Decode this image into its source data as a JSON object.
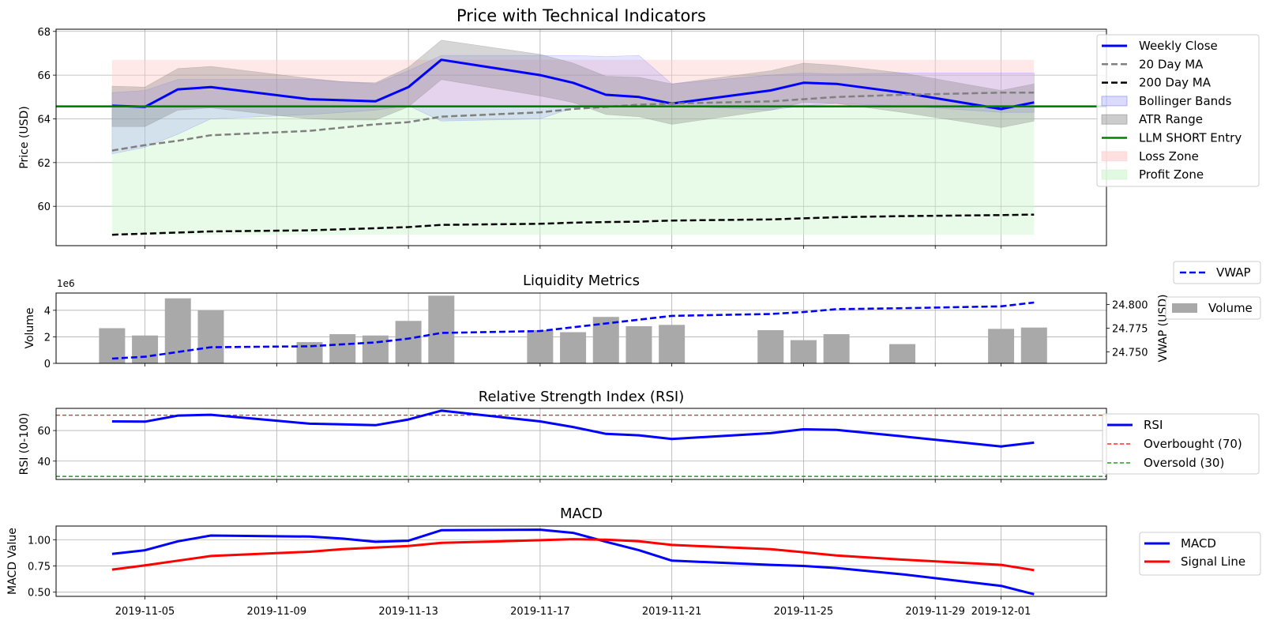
{
  "chart_data": [
    {
      "type": "line",
      "title": "Price with Technical Indicators",
      "ylabel": "Price (USD)",
      "ylim": [
        58.2,
        68.1
      ],
      "yticks": [
        60,
        62,
        64,
        66,
        68
      ],
      "grid": true,
      "legend_position": "right",
      "dates": [
        "2019-11-04",
        "2019-11-05",
        "2019-11-06",
        "2019-11-07",
        "2019-11-10",
        "2019-11-11",
        "2019-11-12",
        "2019-11-13",
        "2019-11-14",
        "2019-11-17",
        "2019-11-18",
        "2019-11-19",
        "2019-11-20",
        "2019-11-21",
        "2019-11-24",
        "2019-11-25",
        "2019-11-26",
        "2019-11-28",
        "2019-12-01",
        "2019-12-02"
      ],
      "series": [
        {
          "name": "Weekly Close",
          "color": "#0000ff",
          "style": "solid",
          "values": [
            64.6,
            64.55,
            65.35,
            65.45,
            64.9,
            64.85,
            64.8,
            65.45,
            66.7,
            66.0,
            65.65,
            65.1,
            65.0,
            64.7,
            65.3,
            65.65,
            65.6,
            65.2,
            64.45,
            64.75
          ]
        },
        {
          "name": "20 Day MA",
          "color": "#808080",
          "style": "dashed",
          "values": [
            62.55,
            62.8,
            63.0,
            63.25,
            63.45,
            63.6,
            63.75,
            63.85,
            64.1,
            64.3,
            64.45,
            64.55,
            64.65,
            64.7,
            64.8,
            64.9,
            65.0,
            65.1,
            65.2,
            65.2
          ]
        },
        {
          "name": "200 Day MA",
          "color": "#000000",
          "style": "dashed",
          "values": [
            58.7,
            58.75,
            58.8,
            58.85,
            58.9,
            58.95,
            59.0,
            59.05,
            59.15,
            59.2,
            59.25,
            59.28,
            59.3,
            59.35,
            59.4,
            59.45,
            59.5,
            59.55,
            59.6,
            59.62
          ]
        }
      ],
      "bands": [
        {
          "name": "Bollinger Bands",
          "color": "#6f6fff",
          "upper": [
            65.2,
            65.3,
            65.8,
            65.8,
            65.8,
            65.7,
            65.6,
            66.2,
            66.9,
            66.9,
            66.9,
            66.85,
            66.9,
            65.6,
            66.0,
            66.1,
            66.05,
            66.1,
            66.1,
            66.1
          ],
          "lower": [
            62.4,
            62.7,
            63.3,
            64.0,
            64.2,
            64.3,
            64.4,
            64.6,
            63.9,
            64.0,
            64.5,
            64.6,
            64.6,
            64.6,
            64.4,
            64.6,
            64.7,
            64.6,
            64.3,
            64.3
          ]
        },
        {
          "name": "ATR Range",
          "color": "#808080",
          "upper": [
            65.5,
            65.45,
            66.3,
            66.4,
            65.85,
            65.7,
            65.65,
            66.35,
            67.6,
            66.95,
            66.55,
            65.95,
            65.9,
            65.6,
            66.2,
            66.55,
            66.45,
            66.1,
            65.3,
            65.6
          ],
          "lower": [
            63.65,
            63.65,
            64.4,
            64.5,
            64.0,
            63.95,
            63.95,
            64.55,
            65.8,
            65.05,
            64.75,
            64.2,
            64.1,
            63.75,
            64.4,
            64.75,
            64.7,
            64.3,
            63.6,
            63.9
          ]
        }
      ],
      "hline": {
        "name": "LLM SHORT Entry",
        "color": "#008000",
        "value": 64.57
      },
      "zones": [
        {
          "name": "Loss Zone",
          "color": "#ffcccc",
          "from": 64.57,
          "to": 66.7
        },
        {
          "name": "Profit Zone",
          "color": "#ccf5cc",
          "from": 58.7,
          "to": 64.57
        }
      ]
    },
    {
      "type": "bar",
      "title": "Liquidity Metrics",
      "ylabel": "Volume",
      "y_offset_text": "1e6",
      "ylim": [
        0,
        5.3
      ],
      "yticks": [
        0,
        2,
        4
      ],
      "y2label": "VWAP (USD)",
      "y2lim": [
        24.738,
        24.812
      ],
      "y2ticks": [
        "24.750",
        "24.775",
        "24.800"
      ],
      "grid": true,
      "dates": [
        "2019-11-04",
        "2019-11-05",
        "2019-11-06",
        "2019-11-07",
        "2019-11-10",
        "2019-11-11",
        "2019-11-12",
        "2019-11-13",
        "2019-11-14",
        "2019-11-17",
        "2019-11-18",
        "2019-11-19",
        "2019-11-20",
        "2019-11-21",
        "2019-11-24",
        "2019-11-25",
        "2019-11-26",
        "2019-11-28",
        "2019-12-01",
        "2019-12-02"
      ],
      "series": [
        {
          "name": "Volume",
          "color": "#a9a9a9",
          "values": [
            2.65,
            2.1,
            4.9,
            4.0,
            1.6,
            2.2,
            2.1,
            3.2,
            5.1,
            2.5,
            2.35,
            3.5,
            2.8,
            2.9,
            2.5,
            1.75,
            2.2,
            1.45,
            2.6,
            2.7
          ]
        },
        {
          "name": "VWAP",
          "color": "#0000ff",
          "style": "dashed",
          "values": [
            24.743,
            24.745,
            24.75,
            24.755,
            24.756,
            24.758,
            24.76,
            24.764,
            24.77,
            24.772,
            24.776,
            24.78,
            24.784,
            24.788,
            24.79,
            24.792,
            24.795,
            24.796,
            24.798,
            24.802
          ]
        }
      ]
    },
    {
      "type": "line",
      "title": "Relative Strength Index (RSI)",
      "ylabel": "RSI (0-100)",
      "ylim": [
        28,
        74.5
      ],
      "yticks": [
        40,
        60
      ],
      "grid": true,
      "dates": [
        "2019-11-04",
        "2019-11-05",
        "2019-11-06",
        "2019-11-07",
        "2019-11-10",
        "2019-11-11",
        "2019-11-12",
        "2019-11-13",
        "2019-11-14",
        "2019-11-17",
        "2019-11-18",
        "2019-11-19",
        "2019-11-20",
        "2019-11-21",
        "2019-11-24",
        "2019-11-25",
        "2019-11-26",
        "2019-11-28",
        "2019-12-01",
        "2019-12-02"
      ],
      "series": [
        {
          "name": "RSI",
          "color": "#0000ff",
          "style": "solid",
          "values": [
            66,
            65.8,
            69.8,
            70.3,
            64.5,
            64.0,
            63.5,
            67.2,
            73.0,
            66.0,
            62.3,
            57.8,
            56.9,
            54.5,
            58.3,
            60.8,
            60.4,
            56.2,
            49.6,
            52.1
          ]
        }
      ],
      "hlines": [
        {
          "name": "Overbought (70)",
          "color": "#ff0000",
          "value": 70
        },
        {
          "name": "Oversold (30)",
          "color": "#008000",
          "value": 30
        }
      ]
    },
    {
      "type": "line",
      "title": "MACD",
      "ylabel": "MACD Value",
      "ylim": [
        0.46,
        1.13
      ],
      "yticks": [
        "0.50",
        "0.75",
        "1.00"
      ],
      "grid": true,
      "xticks": [
        "2019-11-05",
        "2019-11-09",
        "2019-11-13",
        "2019-11-17",
        "2019-11-21",
        "2019-11-25",
        "2019-11-29",
        "2019-12-01"
      ],
      "dates": [
        "2019-11-04",
        "2019-11-05",
        "2019-11-06",
        "2019-11-07",
        "2019-11-10",
        "2019-11-11",
        "2019-11-12",
        "2019-11-13",
        "2019-11-14",
        "2019-11-17",
        "2019-11-18",
        "2019-11-19",
        "2019-11-20",
        "2019-11-21",
        "2019-11-24",
        "2019-11-25",
        "2019-11-26",
        "2019-11-28",
        "2019-12-01",
        "2019-12-02"
      ],
      "series": [
        {
          "name": "MACD",
          "color": "#0000ff",
          "style": "solid",
          "values": [
            0.865,
            0.9,
            0.985,
            1.04,
            1.03,
            1.01,
            0.98,
            0.99,
            1.09,
            1.095,
            1.065,
            0.98,
            0.9,
            0.8,
            0.76,
            0.75,
            0.73,
            0.67,
            0.56,
            0.48
          ]
        },
        {
          "name": "Signal Line",
          "color": "#ff0000",
          "style": "solid",
          "values": [
            0.715,
            0.755,
            0.8,
            0.845,
            0.885,
            0.91,
            0.925,
            0.94,
            0.97,
            0.995,
            1.005,
            1.0,
            0.985,
            0.95,
            0.91,
            0.88,
            0.85,
            0.81,
            0.76,
            0.71
          ]
        }
      ]
    }
  ]
}
